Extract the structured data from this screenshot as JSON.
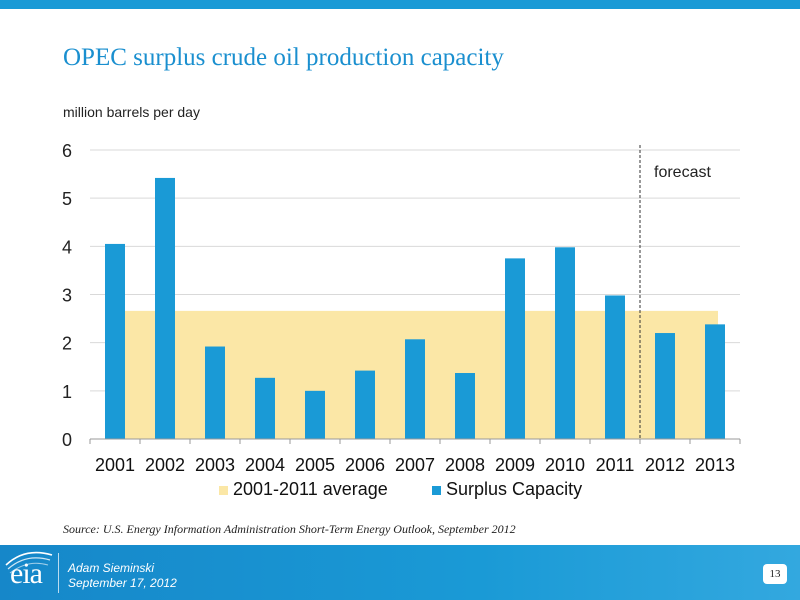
{
  "slide": {
    "title": "OPEC surplus crude oil production capacity",
    "unit_label": "million barrels per day",
    "source": "Source:  U.S. Energy Information Administration Short-Term Energy Outlook, September 2012",
    "page_number": "13"
  },
  "footer": {
    "logo": "eia",
    "author": "Adam Sieminski",
    "date": "September 17, 2012"
  },
  "colors": {
    "accent": "#1a9ad6",
    "bar": "#1a9ad6",
    "average_band": "#fbe7a6"
  },
  "chart_data": {
    "type": "bar",
    "categories": [
      "2001",
      "2002",
      "2003",
      "2004",
      "2005",
      "2006",
      "2007",
      "2008",
      "2009",
      "2010",
      "2011",
      "2012",
      "2013"
    ],
    "series": [
      {
        "name": "Surplus Capacity",
        "values": [
          4.05,
          5.42,
          1.92,
          1.27,
          1.0,
          1.42,
          2.07,
          1.37,
          3.75,
          3.98,
          2.98,
          2.2,
          2.38
        ]
      }
    ],
    "average": {
      "name": "2001-2011 average",
      "value": 2.66,
      "from": "2001",
      "to": "2013"
    },
    "annotation": {
      "text": "forecast",
      "after": "2011"
    },
    "yticks": [
      0,
      1,
      2,
      3,
      4,
      5,
      6
    ],
    "ylim": [
      0,
      6
    ],
    "grid": true,
    "legend": "bottom",
    "xlabel": "",
    "ylabel": ""
  }
}
